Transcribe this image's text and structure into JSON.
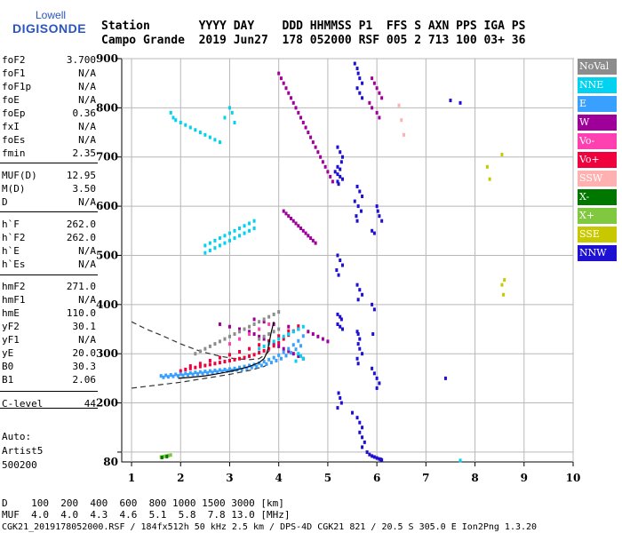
{
  "logo": {
    "line1": "Lowell",
    "line2": "DIGISONDE"
  },
  "header": {
    "row1": "Station       YYYY DAY    DDD HHMMSS P1  FFS S AXN PPS IGA PS",
    "row2": "Campo Grande  2019 Jun27  178 052000 RSF 005 2 713 100 03+ 36"
  },
  "params": [
    {
      "k": "foF2",
      "v": "3.700"
    },
    {
      "k": "foF1",
      "v": "N/A"
    },
    {
      "k": "foF1p",
      "v": "N/A"
    },
    {
      "k": "foE",
      "v": "N/A"
    },
    {
      "k": "foEp",
      "v": "0.36"
    },
    {
      "k": "fxI",
      "v": "N/A"
    },
    {
      "k": "foEs",
      "v": "N/A"
    },
    {
      "k": "fmin",
      "v": "2.35"
    },
    {
      "k": "MUF(D)",
      "v": "12.95"
    },
    {
      "k": "M(D)",
      "v": "3.50"
    },
    {
      "k": "D",
      "v": "N/A"
    },
    {
      "k": "h`F",
      "v": "262.0"
    },
    {
      "k": "h`F2",
      "v": "262.0"
    },
    {
      "k": "h`E",
      "v": "N/A"
    },
    {
      "k": "h`Es",
      "v": "N/A"
    },
    {
      "k": "hmF2",
      "v": "271.0"
    },
    {
      "k": "hmF1",
      "v": "N/A"
    },
    {
      "k": "hmE",
      "v": "110.0"
    },
    {
      "k": "yF2",
      "v": "30.1"
    },
    {
      "k": "yF1",
      "v": "N/A"
    },
    {
      "k": "yE",
      "v": "20.0"
    },
    {
      "k": "B0",
      "v": "30.3"
    },
    {
      "k": "B1",
      "v": "2.06"
    },
    {
      "k": "C-level",
      "v": "44"
    }
  ],
  "auto": {
    "l1": "Auto:",
    "l2": "Artist5",
    "l3": "500200"
  },
  "legend": [
    {
      "label": "NoVal",
      "color": "#8c8c8c"
    },
    {
      "label": "NNE",
      "color": "#00d2f0"
    },
    {
      "label": "E",
      "color": "#3aa0ff"
    },
    {
      "label": "W",
      "color": "#a0009a"
    },
    {
      "label": "Vo-",
      "color": "#ff40b0"
    },
    {
      "label": "Vo+",
      "color": "#f0003c"
    },
    {
      "label": "SSW",
      "color": "#ffb0b0"
    },
    {
      "label": "X-",
      "color": "#007800"
    },
    {
      "label": "X+",
      "color": "#80c840"
    },
    {
      "label": "SSE",
      "color": "#c8c800"
    },
    {
      "label": "NNW",
      "color": "#1e10d0"
    }
  ],
  "footer": {
    "d_row": "D    100  200  400  600  800 1000 1500 3000 [km]",
    "muf_row": "MUF  4.0  4.0  4.3  4.6  5.1  5.8  7.8 13.0 [MHz]",
    "file_row": "CGK21_2019178052000.RSF / 184fx512h 50 kHz 2.5 km / DPS-4D CGK21 821 / 20.5 S 305.0 E Ion2Png 1.3.20"
  },
  "chart_data": {
    "type": "scatter",
    "xlim": [
      0.8,
      10
    ],
    "ylim": [
      80,
      900
    ],
    "xticks": [
      1,
      2,
      3,
      4,
      5,
      6,
      7,
      8,
      9,
      10
    ],
    "yticks": [
      100,
      200,
      300,
      400,
      500,
      600,
      700,
      800,
      900
    ],
    "ytick_labels": [
      "",
      "200",
      "300",
      "400",
      "500",
      "600",
      "700",
      "800",
      "900"
    ],
    "bottom_label": "80",
    "grid": true,
    "traces": [
      {
        "name": "NNW",
        "color": "#1e10d0",
        "x": [
          5.55,
          5.6,
          5.62,
          5.65,
          5.7,
          5.6,
          5.65,
          5.7,
          5.2,
          5.25,
          5.3,
          5.28,
          5.2,
          5.25,
          5.15,
          5.2,
          5.25,
          5.3,
          5.2,
          5.22,
          5.6,
          5.65,
          5.7,
          5.55,
          5.62,
          5.68,
          5.58,
          5.6,
          5.2,
          5.25,
          5.3,
          5.18,
          5.22,
          5.6,
          5.65,
          5.7,
          5.62,
          5.9,
          5.95,
          5.2,
          5.25,
          5.28,
          5.2,
          5.25,
          5.3,
          5.6,
          5.62,
          5.65,
          5.62,
          5.65,
          5.7,
          5.6,
          5.62,
          5.9,
          5.95,
          6.0,
          6.05,
          6.0,
          5.22,
          5.25,
          5.28,
          5.2,
          5.5,
          5.6,
          5.65,
          5.7,
          5.65,
          5.7,
          5.75,
          5.7,
          5.8,
          5.85,
          5.9,
          5.95,
          6.0,
          6.05,
          6.08,
          6.1,
          6.0,
          6.02,
          6.05,
          6.1,
          5.9,
          5.95,
          5.92,
          7.5,
          7.7,
          7.4
        ],
        "y": [
          890,
          880,
          870,
          860,
          850,
          840,
          830,
          820,
          720,
          710,
          700,
          690,
          680,
          675,
          670,
          665,
          660,
          655,
          650,
          645,
          640,
          630,
          620,
          610,
          600,
          590,
          580,
          570,
          500,
          490,
          480,
          470,
          460,
          440,
          430,
          420,
          410,
          400,
          390,
          380,
          375,
          370,
          360,
          355,
          350,
          345,
          340,
          330,
          320,
          310,
          300,
          290,
          280,
          270,
          260,
          250,
          240,
          230,
          220,
          210,
          200,
          190,
          180,
          170,
          160,
          150,
          140,
          130,
          120,
          110,
          100,
          95,
          92,
          90,
          88,
          86,
          85,
          84,
          600,
          590,
          580,
          570,
          550,
          545,
          340,
          815,
          810,
          250
        ]
      },
      {
        "name": "W",
        "color": "#a0009a",
        "x": [
          4.0,
          4.05,
          4.1,
          4.15,
          4.2,
          4.25,
          4.3,
          4.35,
          4.4,
          4.45,
          4.5,
          4.55,
          4.6,
          4.65,
          4.7,
          4.75,
          4.8,
          4.85,
          4.9,
          4.95,
          5.0,
          5.05,
          5.1,
          4.1,
          4.15,
          4.2,
          4.25,
          4.3,
          4.35,
          4.4,
          4.45,
          4.5,
          4.55,
          4.6,
          4.65,
          4.7,
          4.75,
          5.9,
          5.95,
          6.0,
          6.05,
          6.1,
          5.85,
          5.9,
          6.0,
          6.05,
          2.8,
          3.0,
          3.2,
          3.4,
          3.5,
          3.6,
          3.7,
          3.8,
          3.9,
          4.0,
          4.1,
          4.2,
          4.3,
          4.4,
          4.5,
          3.5,
          3.7,
          3.9,
          4.2,
          4.4,
          4.6,
          4.7,
          4.8,
          4.9,
          5.0
        ],
        "y": [
          870,
          860,
          850,
          840,
          830,
          820,
          810,
          800,
          790,
          780,
          770,
          760,
          750,
          740,
          730,
          720,
          710,
          700,
          690,
          680,
          670,
          660,
          650,
          590,
          585,
          580,
          575,
          570,
          565,
          560,
          555,
          550,
          545,
          540,
          535,
          530,
          525,
          860,
          850,
          840,
          830,
          820,
          810,
          800,
          790,
          780,
          360,
          355,
          350,
          345,
          340,
          335,
          330,
          325,
          320,
          315,
          310,
          305,
          300,
          295,
          290,
          370,
          365,
          360,
          355,
          350,
          345,
          340,
          335,
          330,
          325
        ]
      },
      {
        "name": "Vo+",
        "color": "#f0003c",
        "x": [
          2.0,
          2.1,
          2.2,
          2.3,
          2.4,
          2.5,
          2.6,
          2.7,
          2.8,
          2.9,
          3.0,
          3.1,
          3.2,
          3.3,
          3.4,
          3.5,
          3.6,
          3.7,
          3.8,
          3.9,
          4.0,
          4.1,
          4.2,
          4.3,
          2.2,
          2.4,
          2.6,
          2.8,
          3.0,
          3.2,
          3.4,
          3.6,
          3.8,
          4.0,
          4.2,
          4.4
        ],
        "y": [
          265,
          268,
          270,
          272,
          274,
          276,
          278,
          280,
          282,
          284,
          286,
          288,
          290,
          292,
          295,
          298,
          302,
          306,
          310,
          316,
          322,
          330,
          338,
          346,
          275,
          280,
          286,
          292,
          298,
          304,
          310,
          318,
          326,
          336,
          346,
          356
        ]
      },
      {
        "name": "E",
        "color": "#3aa0ff",
        "x": [
          1.6,
          1.7,
          1.8,
          1.9,
          2.0,
          2.1,
          2.2,
          2.3,
          2.4,
          2.5,
          2.6,
          2.7,
          2.8,
          2.9,
          3.0,
          3.1,
          3.2,
          3.3,
          3.4,
          3.5,
          3.6,
          3.7,
          3.8,
          3.9,
          4.0,
          4.1,
          4.2,
          4.3,
          4.4,
          4.5,
          1.65,
          1.75,
          1.85,
          1.95,
          2.05,
          2.15,
          2.25,
          2.35,
          2.45,
          2.55,
          2.65,
          2.75,
          2.85,
          2.95,
          3.05,
          3.15,
          3.25,
          3.35,
          3.45,
          3.55,
          3.65,
          3.75,
          3.85,
          3.95,
          4.05,
          4.15,
          4.25,
          4.35,
          4.45
        ],
        "y": [
          255,
          256,
          257,
          258,
          259,
          260,
          261,
          262,
          263,
          264,
          265,
          266,
          267,
          268,
          269,
          270,
          272,
          274,
          276,
          278,
          281,
          284,
          288,
          292,
          297,
          303,
          310,
          318,
          326,
          336,
          252,
          253,
          254,
          255,
          256,
          257,
          258,
          259,
          260,
          261,
          262,
          263,
          264,
          265,
          266,
          267,
          268,
          270,
          272,
          274,
          276,
          279,
          282,
          286,
          290,
          296,
          302,
          309,
          316
        ]
      },
      {
        "name": "NNE",
        "color": "#00d2f0",
        "x": [
          1.8,
          1.85,
          1.9,
          2.0,
          2.1,
          2.2,
          2.3,
          2.4,
          2.5,
          2.6,
          2.7,
          2.8,
          2.9,
          3.0,
          3.05,
          3.1,
          2.5,
          2.6,
          2.7,
          2.8,
          2.9,
          3.0,
          3.1,
          3.2,
          3.3,
          3.4,
          3.5,
          2.5,
          2.6,
          2.7,
          2.8,
          2.9,
          3.0,
          3.1,
          3.2,
          3.3,
          3.4,
          3.5,
          3.6,
          3.7,
          3.8,
          3.9,
          4.0,
          4.1,
          4.2,
          4.3,
          4.4,
          4.5,
          4.4,
          4.45,
          4.5,
          4.35,
          7.7
        ],
        "y": [
          790,
          780,
          775,
          770,
          765,
          760,
          755,
          750,
          745,
          740,
          735,
          730,
          780,
          800,
          790,
          770,
          520,
          525,
          530,
          535,
          540,
          545,
          550,
          555,
          560,
          565,
          570,
          505,
          510,
          515,
          520,
          525,
          530,
          535,
          540,
          545,
          550,
          555,
          310,
          315,
          320,
          325,
          330,
          335,
          340,
          345,
          350,
          355,
          300,
          295,
          290,
          285,
          83
        ]
      },
      {
        "name": "NoVal",
        "color": "#8c8c8c",
        "x": [
          2.3,
          2.4,
          2.5,
          2.6,
          2.7,
          2.8,
          2.9,
          3.0,
          3.1,
          3.2,
          3.3,
          3.4,
          3.5,
          3.6,
          3.7,
          3.8,
          3.9,
          4.0,
          3.6,
          3.7,
          3.8,
          3.9,
          4.0
        ],
        "y": [
          300,
          305,
          310,
          315,
          320,
          325,
          330,
          335,
          340,
          345,
          350,
          355,
          360,
          365,
          370,
          375,
          380,
          385,
          330,
          335,
          340,
          345,
          350
        ]
      },
      {
        "name": "SSW",
        "color": "#ffb0b0",
        "x": [
          6.45,
          6.5,
          6.55
        ],
        "y": [
          805,
          775,
          745
        ]
      },
      {
        "name": "X+",
        "color": "#80c840",
        "x": [
          1.6,
          1.65,
          1.7,
          1.75,
          1.8
        ],
        "y": [
          90,
          91,
          92,
          93,
          94
        ]
      },
      {
        "name": "X-",
        "color": "#007800",
        "x": [
          1.62,
          1.72
        ],
        "y": [
          89,
          91
        ]
      },
      {
        "name": "SSE",
        "color": "#c8c800",
        "x": [
          8.25,
          8.3,
          8.55,
          8.6,
          8.55,
          8.58
        ],
        "y": [
          680,
          655,
          705,
          450,
          440,
          420
        ]
      },
      {
        "name": "Vo-",
        "color": "#ff40b0",
        "x": [
          3.0,
          3.2,
          3.4,
          3.6,
          3.8
        ],
        "y": [
          320,
          330,
          340,
          350,
          360
        ]
      }
    ],
    "profile_solid": {
      "x": [
        1.95,
        2.2,
        2.5,
        2.8,
        3.1,
        3.4,
        3.6,
        3.7,
        3.75,
        3.78,
        3.8,
        3.82,
        3.85,
        3.9
      ],
      "y": [
        250,
        252,
        255,
        260,
        266,
        274,
        282,
        290,
        300,
        310,
        320,
        330,
        345,
        365
      ]
    },
    "profile_lower": {
      "x": [
        1.0,
        1.5,
        2.0,
        2.5,
        3.0,
        3.4,
        3.7,
        3.85
      ],
      "y": [
        230,
        236,
        242,
        250,
        258,
        266,
        274,
        282
      ]
    },
    "profile_upper": {
      "x": [
        1.0,
        1.3,
        1.6,
        2.0,
        2.4,
        2.8,
        3.1,
        3.4,
        3.6,
        3.75,
        3.85
      ],
      "y": [
        365,
        350,
        338,
        320,
        305,
        295,
        290,
        288,
        290,
        300,
        310
      ]
    }
  }
}
